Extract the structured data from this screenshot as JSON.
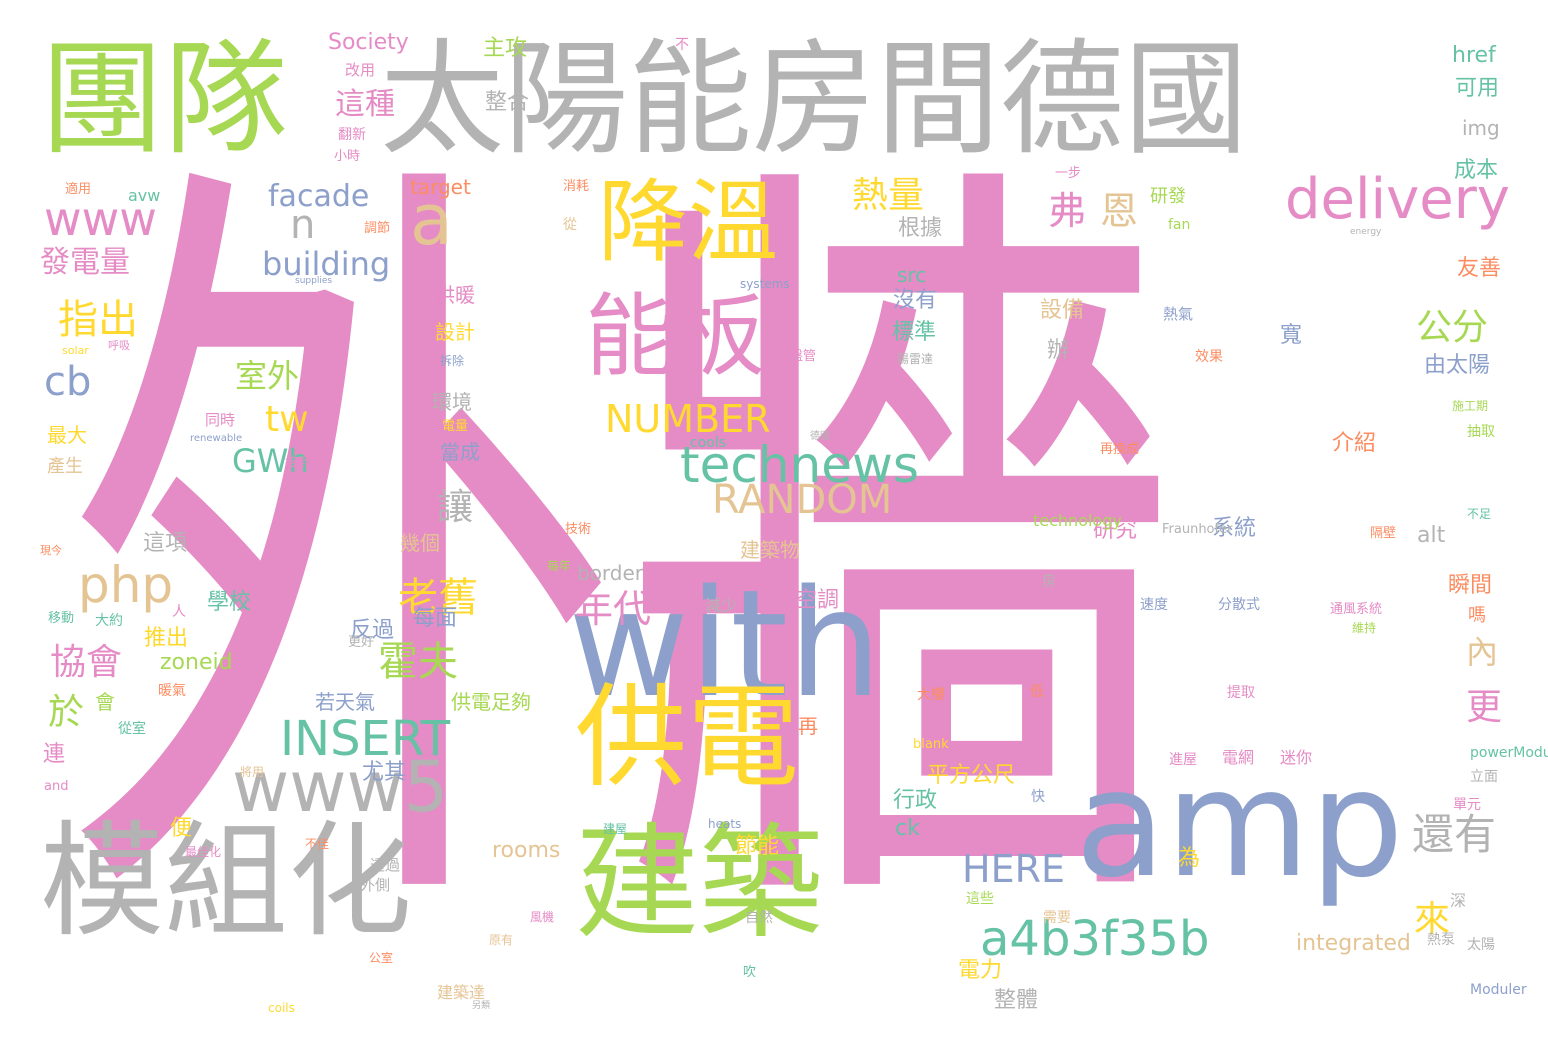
{
  "palette": {
    "pink": "#e58bc5",
    "gray": "#b3b3b3",
    "green": "#a7d854",
    "yellow": "#ffd92f",
    "blue": "#8da0cb",
    "tan": "#e5c494",
    "teal": "#66c2a5",
    "orange": "#fc8d62"
  },
  "words": [
    "外牆",
    "團隊",
    "太陽能房間德國",
    "模組化",
    "建築",
    "amp",
    "with",
    "供電",
    "能板",
    "降溫",
    "a",
    "delivery",
    "www",
    "www5",
    "php",
    "cb",
    "technews",
    "RANDOM",
    "NUMBER",
    "INSERT",
    "a4b3f35b",
    "HERE",
    "還有",
    "熱量",
    "弗",
    "恩",
    "n",
    "facade",
    "building",
    "發電量",
    "指出",
    "室外",
    "tw",
    "GWh",
    "公分",
    "老舊",
    "年代",
    "協會",
    "霍夫",
    "於",
    "更",
    "內",
    "來",
    "這種",
    "Society",
    "主攻",
    "整合",
    "不",
    "改用",
    "翻新",
    "小時",
    "href",
    "可用",
    "img",
    "成本",
    "一步",
    "研發",
    "target",
    "avw",
    "消耗",
    "適用",
    "調節",
    "fan",
    "energy",
    "從",
    "根據",
    "src",
    "沒有",
    "標準",
    "設備",
    "辦",
    "寬",
    "由太陽",
    "友善",
    "熱氣",
    "supplies",
    "systems",
    "solar",
    "呼吸",
    "拆除",
    "盤管",
    "陽雷達",
    "效果",
    "供暖",
    "設計",
    "環境",
    "當成",
    "最大",
    "產生",
    "同時",
    "renewable",
    "電量",
    "cools",
    "德國",
    "施工期",
    "抽取",
    "再換成",
    "介紹",
    "接到",
    "讓",
    "這項",
    "學校",
    "技術",
    "每年",
    "建築物",
    "現今",
    "幾個",
    "border",
    "alt",
    "研究",
    "系統",
    "Fraunhofer",
    "隔壁",
    "不足",
    "瞬間",
    "嗎",
    "反過",
    "每面",
    "空調",
    "推出",
    "zoneid",
    "速度",
    "分散式",
    "通風系統",
    "維持",
    "房",
    "人",
    "大約",
    "移動",
    "減少",
    "暖氣",
    "更好",
    "會",
    "大樓",
    "提取",
    "若天氣",
    "供電足夠",
    "從室",
    "再",
    "低",
    "連",
    "尤其",
    "blank",
    "and",
    "將用",
    "powerModuler",
    "立面",
    "單元",
    "進屋",
    "電網",
    "迷你",
    "平方公尺",
    "快",
    "便",
    "行政",
    "ck",
    "建屋",
    "heats",
    "說",
    "不佳",
    "最佳化",
    "rooms",
    "節能",
    "為",
    "深",
    "透過",
    "外側",
    "自然",
    "需要",
    "這些",
    "太陽",
    "熱泵",
    "風機",
    "原有",
    "integrated",
    "公室",
    "電力",
    "建築達",
    "吹",
    "整體",
    "另類",
    "technology",
    "coils",
    "Moduler",
    "一面"
  ]
}
